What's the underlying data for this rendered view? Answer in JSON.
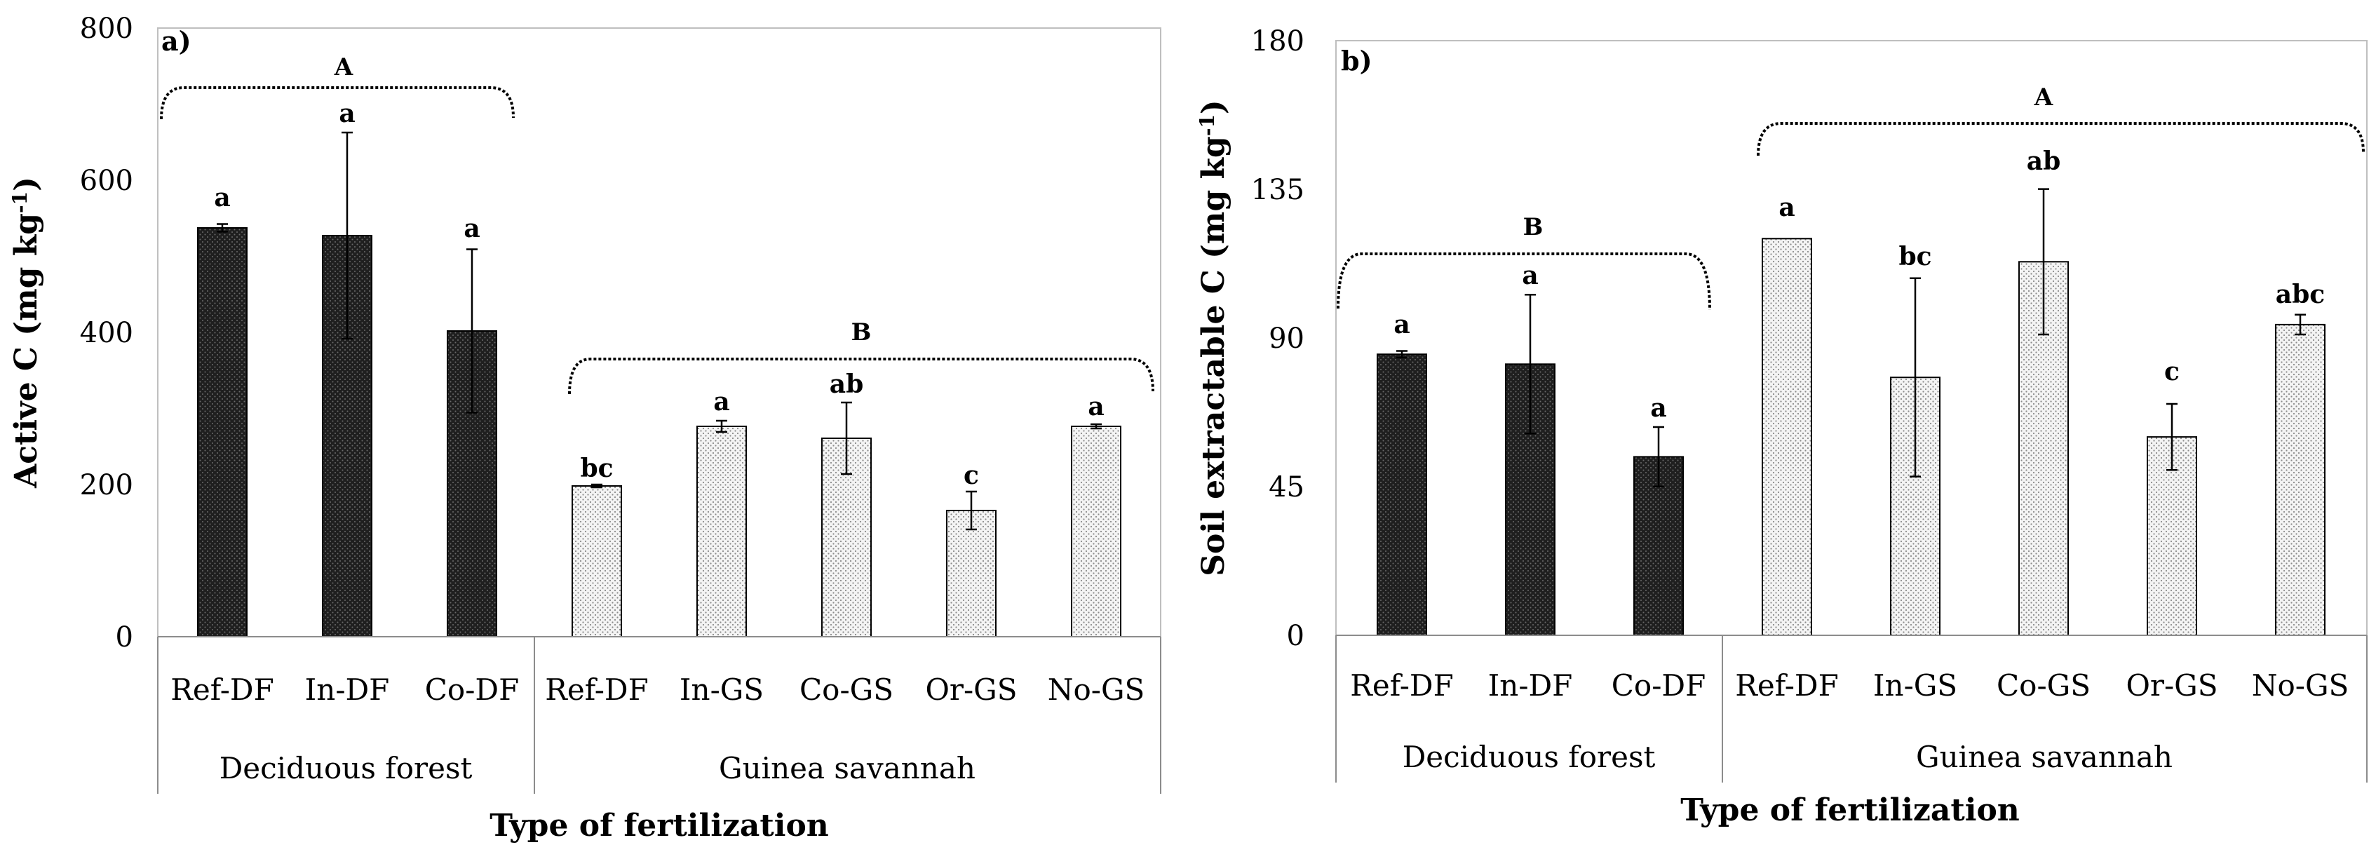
{
  "chart_data": [
    {
      "type": "bar",
      "panel_label": "a)",
      "title": "",
      "xlabel": "Type of fertilization",
      "ylabel": "Active C (mg kg",
      "ylabel_unit_sup": "-1",
      "ylabel_close": ")",
      "ylim": [
        0,
        800
      ],
      "yticks": [
        "0",
        "200",
        "400",
        "600",
        "800"
      ],
      "categories": [
        "Ref-DF",
        "In-DF",
        "Co-DF",
        "Ref-DF",
        "In-GS",
        "Co-GS",
        "Or-GS",
        "No-GS"
      ],
      "groups": [
        {
          "name": "Deciduous forest",
          "count": 3,
          "style": "dark"
        },
        {
          "name": "Guinea savannah",
          "count": 5,
          "style": "light"
        }
      ],
      "values": [
        535,
        525,
        400,
        197,
        275,
        260,
        165,
        275
      ],
      "errors": [
        5,
        135,
        107,
        2,
        7,
        47,
        25,
        3
      ],
      "letters": [
        "a",
        "a",
        "a",
        "bc",
        "a",
        "ab",
        "c",
        "a"
      ],
      "group_letters": [
        {
          "group": "Deciduous forest",
          "letter": "A"
        },
        {
          "group": "Guinea savannah",
          "letter": "B"
        }
      ]
    },
    {
      "type": "bar",
      "panel_label": "b)",
      "title": "",
      "xlabel": "Type of fertilization",
      "ylabel": "Soil extractable C (mg kg",
      "ylabel_unit_sup": "-1",
      "ylabel_close": ")",
      "ylim": [
        0,
        180
      ],
      "yticks": [
        "0",
        "45",
        "90",
        "135",
        "180"
      ],
      "categories": [
        "Ref-DF",
        "In-DF",
        "Co-DF",
        "Ref-DF",
        "In-GS",
        "Co-GS",
        "Or-GS",
        "No-GS"
      ],
      "groups": [
        {
          "name": "Deciduous forest",
          "count": 3,
          "style": "dark"
        },
        {
          "name": "Guinea savannah",
          "count": 5,
          "style": "light"
        }
      ],
      "values": [
        85,
        82,
        54,
        120,
        78,
        113,
        60,
        94
      ],
      "errors": [
        1,
        21,
        9,
        0,
        30,
        22,
        10,
        3
      ],
      "letters": [
        "a",
        "a",
        "a",
        "a",
        "bc",
        "ab",
        "c",
        "abc"
      ],
      "group_letters": [
        {
          "group": "Deciduous forest",
          "letter": "B"
        },
        {
          "group": "Guinea savannah",
          "letter": "A"
        }
      ]
    }
  ]
}
